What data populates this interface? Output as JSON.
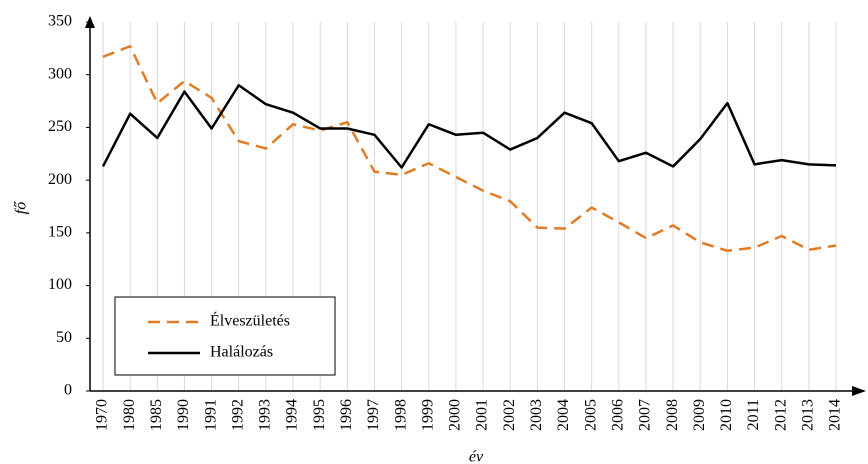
{
  "chart_data": {
    "type": "line",
    "xlabel": "év",
    "ylabel": "fő",
    "categories": [
      "1970",
      "1980",
      "1985",
      "1990",
      "1991",
      "1992",
      "1993",
      "1994",
      "1995",
      "1996",
      "1997",
      "1998",
      "1999",
      "2000",
      "2001",
      "2002",
      "2003",
      "2004",
      "2005",
      "2006",
      "2007",
      "2008",
      "2009",
      "2010",
      "2011",
      "2012",
      "2013",
      "2014"
    ],
    "series": [
      {
        "name": "Élveszületés",
        "color": "#e37b22",
        "line_style": "dashed",
        "values": [
          317,
          327,
          273,
          294,
          278,
          237,
          230,
          253,
          247,
          255,
          208,
          205,
          216,
          203,
          190,
          180,
          155,
          154,
          174,
          160,
          145,
          157,
          141,
          133,
          136,
          147,
          134,
          138
        ]
      },
      {
        "name": "Halálozás",
        "color": "#000000",
        "line_style": "solid",
        "values": [
          213,
          263,
          240,
          284,
          249,
          290,
          272,
          264,
          249,
          249,
          243,
          212,
          253,
          243,
          245,
          229,
          240,
          264,
          254,
          218,
          226,
          213,
          239,
          273,
          215,
          219,
          215,
          214
        ]
      }
    ],
    "ylim": [
      0,
      350
    ],
    "yticks": [
      0,
      50,
      100,
      150,
      200,
      250,
      300,
      350
    ],
    "grid": true,
    "legend": "lower left"
  }
}
